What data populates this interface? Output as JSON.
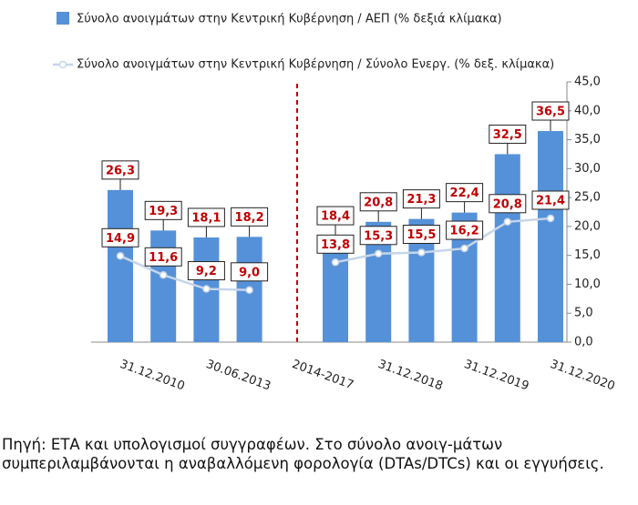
{
  "chart_data": {
    "type": "bar_line",
    "categories": [
      "31.12.2010",
      null,
      "30.06.2013",
      null,
      "2014-2017",
      null,
      "31.12.2018",
      null,
      "31.12.2019",
      null,
      "31.12.2020"
    ],
    "series": [
      {
        "name": "Σύνολο ανοιγμάτων στην Κεντρική Κυβέρνηση / ΑΕΠ (% δεξιά κλίμακα)",
        "type": "bar",
        "color": "#5591d9",
        "values": [
          26.3,
          19.3,
          18.1,
          18.2,
          null,
          18.4,
          20.8,
          21.3,
          22.4,
          32.5,
          36.5
        ],
        "value_labels": [
          "26,3",
          "19,3",
          "18,1",
          "18,2",
          null,
          "18,4",
          "20,8",
          "21,3",
          "22,4",
          "32,5",
          "36,5"
        ]
      },
      {
        "name": "Σύνολο ανοιγμάτων στην Κεντρική Κυβέρνηση / Σύνολο Ενεργ. (% δεξ. κλίμακα)",
        "type": "line",
        "color": "#c6d5ea",
        "values": [
          14.9,
          11.6,
          9.2,
          9.0,
          null,
          13.8,
          15.3,
          15.5,
          16.2,
          20.8,
          21.4
        ],
        "value_labels": [
          "14,9",
          "11,6",
          "9,2",
          "9,0",
          null,
          "13,8",
          "15,3",
          "15,5",
          "16,2",
          "20,8",
          "21,4"
        ]
      }
    ],
    "ylim": [
      0,
      45
    ],
    "yticks": [
      {
        "value": 0,
        "label": "0,0"
      },
      {
        "value": 5,
        "label": "5,0"
      },
      {
        "value": 10,
        "label": "10,0"
      },
      {
        "value": 15,
        "label": "15,0"
      },
      {
        "value": 20,
        "label": "20,0"
      },
      {
        "value": 25,
        "label": "25,0"
      },
      {
        "value": 30,
        "label": "30,0"
      },
      {
        "value": 35,
        "label": "35,0"
      },
      {
        "value": 40,
        "label": "40,0"
      },
      {
        "value": 45,
        "label": "45,0"
      }
    ],
    "y_axis_side": "right",
    "grid": false,
    "note": "Πηγή: ΕΤΑ και υπολογισμοί συγγραφέων. Στο σύνολο ανοιγ-μάτων συμπεριλαμβάνονται η αναβαλλόμενη φορολογία (DTAs/DTCs) και οι εγγυήσεις."
  }
}
